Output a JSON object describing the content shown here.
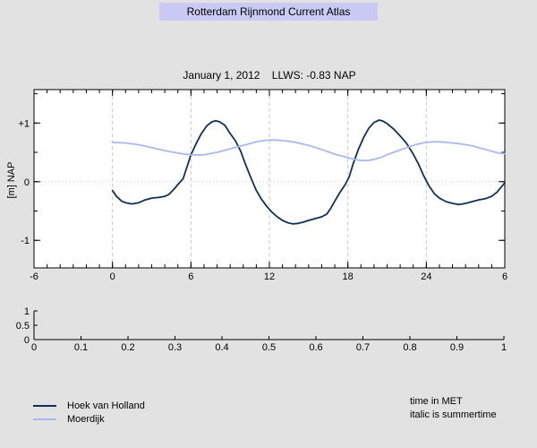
{
  "app": {
    "title": "Rotterdam Rijnmond Current Atlas"
  },
  "chart": {
    "title": "January 1, 2012    LLWS: -0.83 NAP",
    "ylabel": "[m] NAP"
  },
  "legend": {
    "items": [
      {
        "label": "Hoek van Holland",
        "color": "#10305a"
      },
      {
        "label": "Moerdijk",
        "color": "#aab8ee"
      }
    ]
  },
  "notes": {
    "line1": "time in MET",
    "line2": "italic is summertime"
  },
  "colors": {
    "figure_bg": "#e2e2e2",
    "title_bg": "#cacaf5",
    "plot_bg": "#ffffff",
    "axis": "#000000",
    "grid": "#c9c9c9",
    "series_dark": "#10305a",
    "series_light": "#aab8ee"
  },
  "chart_data": [
    {
      "type": "line",
      "title": "January 1, 2012    LLWS: -0.83 NAP",
      "xlabel": "",
      "ylabel": "[m] NAP",
      "xlim": [
        -6,
        30
      ],
      "ylim": [
        -1.47,
        1.57
      ],
      "xticks_major": [
        [
          -6,
          "-6"
        ],
        [
          0,
          "0"
        ],
        [
          6,
          "6"
        ],
        [
          12,
          "12"
        ],
        [
          18,
          "18"
        ],
        [
          24,
          "24"
        ],
        [
          30,
          "6"
        ]
      ],
      "xtick_minor_step": 1,
      "yticks_major": [
        [
          -1,
          "-1"
        ],
        [
          0,
          "0"
        ],
        [
          1,
          "+1"
        ]
      ],
      "ytick_minor_step": 0.5,
      "grid_x": [
        0,
        6,
        12,
        18,
        24
      ],
      "grid_y": [
        0
      ],
      "grid_x_style": "dashed",
      "grid_y_style": "dotted",
      "legend_position": "bottom-left-outside",
      "series": [
        {
          "name": "Hoek van Holland",
          "color": "#10305a",
          "points": [
            [
              0,
              -0.15
            ],
            [
              0.3,
              -0.25
            ],
            [
              0.7,
              -0.33
            ],
            [
              1,
              -0.36
            ],
            [
              1.5,
              -0.38
            ],
            [
              2,
              -0.36
            ],
            [
              2.5,
              -0.31
            ],
            [
              3,
              -0.28
            ],
            [
              3.5,
              -0.27
            ],
            [
              4,
              -0.25
            ],
            [
              4.3,
              -0.22
            ],
            [
              4.7,
              -0.13
            ],
            [
              5,
              -0.05
            ],
            [
              5.4,
              0.05
            ],
            [
              5.7,
              0.25
            ],
            [
              6,
              0.46
            ],
            [
              6.4,
              0.65
            ],
            [
              6.8,
              0.82
            ],
            [
              7.2,
              0.95
            ],
            [
              7.6,
              1.02
            ],
            [
              7.9,
              1.04
            ],
            [
              8.2,
              1.02
            ],
            [
              8.6,
              0.96
            ],
            [
              9,
              0.82
            ],
            [
              9.4,
              0.7
            ],
            [
              9.8,
              0.52
            ],
            [
              10.2,
              0.28
            ],
            [
              10.6,
              0.06
            ],
            [
              11,
              -0.15
            ],
            [
              11.4,
              -0.3
            ],
            [
              11.8,
              -0.42
            ],
            [
              12.2,
              -0.52
            ],
            [
              12.6,
              -0.6
            ],
            [
              13,
              -0.66
            ],
            [
              13.4,
              -0.7
            ],
            [
              13.8,
              -0.72
            ],
            [
              14.2,
              -0.71
            ],
            [
              14.6,
              -0.69
            ],
            [
              15,
              -0.66
            ],
            [
              15.5,
              -0.63
            ],
            [
              16,
              -0.6
            ],
            [
              16.4,
              -0.55
            ],
            [
              16.7,
              -0.45
            ],
            [
              17,
              -0.33
            ],
            [
              17.4,
              -0.18
            ],
            [
              17.8,
              -0.05
            ],
            [
              18.1,
              0.08
            ],
            [
              18.4,
              0.3
            ],
            [
              18.8,
              0.55
            ],
            [
              19.2,
              0.75
            ],
            [
              19.6,
              0.91
            ],
            [
              20,
              1.01
            ],
            [
              20.4,
              1.05
            ],
            [
              20.7,
              1.03
            ],
            [
              21,
              0.99
            ],
            [
              21.5,
              0.9
            ],
            [
              22,
              0.78
            ],
            [
              22.5,
              0.65
            ],
            [
              23,
              0.47
            ],
            [
              23.4,
              0.3
            ],
            [
              23.8,
              0.1
            ],
            [
              24.2,
              -0.07
            ],
            [
              24.6,
              -0.2
            ],
            [
              25,
              -0.28
            ],
            [
              25.5,
              -0.34
            ],
            [
              26,
              -0.37
            ],
            [
              26.5,
              -0.39
            ],
            [
              27,
              -0.37
            ],
            [
              27.5,
              -0.34
            ],
            [
              28,
              -0.31
            ],
            [
              28.5,
              -0.29
            ],
            [
              29,
              -0.25
            ],
            [
              29.4,
              -0.18
            ],
            [
              29.7,
              -0.1
            ],
            [
              30,
              -0.02
            ]
          ]
        },
        {
          "name": "Moerdijk",
          "color": "#aab8ee",
          "points": [
            [
              0,
              0.67
            ],
            [
              1,
              0.66
            ],
            [
              2,
              0.63
            ],
            [
              3,
              0.58
            ],
            [
              4,
              0.53
            ],
            [
              5,
              0.49
            ],
            [
              5.5,
              0.47
            ],
            [
              6,
              0.46
            ],
            [
              6.5,
              0.455
            ],
            [
              7,
              0.46
            ],
            [
              7.5,
              0.48
            ],
            [
              8,
              0.5
            ],
            [
              9,
              0.56
            ],
            [
              10,
              0.62
            ],
            [
              11,
              0.68
            ],
            [
              11.5,
              0.7
            ],
            [
              12,
              0.71
            ],
            [
              12.5,
              0.71
            ],
            [
              13,
              0.7
            ],
            [
              13.5,
              0.69
            ],
            [
              14,
              0.67
            ],
            [
              15,
              0.62
            ],
            [
              16,
              0.55
            ],
            [
              17,
              0.47
            ],
            [
              17.5,
              0.44
            ],
            [
              18,
              0.41
            ],
            [
              18.5,
              0.38
            ],
            [
              19,
              0.36
            ],
            [
              19.5,
              0.36
            ],
            [
              20,
              0.38
            ],
            [
              20.5,
              0.41
            ],
            [
              21,
              0.46
            ],
            [
              21.5,
              0.5
            ],
            [
              22,
              0.54
            ],
            [
              22.5,
              0.58
            ],
            [
              23,
              0.62
            ],
            [
              23.5,
              0.65
            ],
            [
              24,
              0.67
            ],
            [
              24.5,
              0.68
            ],
            [
              25,
              0.68
            ],
            [
              25.5,
              0.67
            ],
            [
              26,
              0.66
            ],
            [
              26.5,
              0.65
            ],
            [
              27,
              0.63
            ],
            [
              27.5,
              0.61
            ],
            [
              28,
              0.58
            ],
            [
              28.5,
              0.55
            ],
            [
              29,
              0.52
            ],
            [
              29.5,
              0.49
            ],
            [
              30,
              0.48
            ]
          ]
        }
      ]
    },
    {
      "type": "line",
      "title": "",
      "xlabel": "",
      "ylabel": "",
      "xlim": [
        0,
        1
      ],
      "ylim": [
        0,
        1
      ],
      "xticks_major": [
        [
          0,
          "0"
        ],
        [
          0.1,
          "0.1"
        ],
        [
          0.2,
          "0.2"
        ],
        [
          0.3,
          "0.3"
        ],
        [
          0.4,
          "0.4"
        ],
        [
          0.5,
          "0.5"
        ],
        [
          0.6,
          "0.6"
        ],
        [
          0.7,
          "0.7"
        ],
        [
          0.8,
          "0.8"
        ],
        [
          0.9,
          "0.9"
        ],
        [
          1,
          "1"
        ]
      ],
      "yticks_major": [
        [
          0,
          "0"
        ],
        [
          0.5,
          "0.5"
        ],
        [
          1,
          "1"
        ]
      ],
      "grid_x": [],
      "grid_y": [],
      "series": []
    }
  ]
}
